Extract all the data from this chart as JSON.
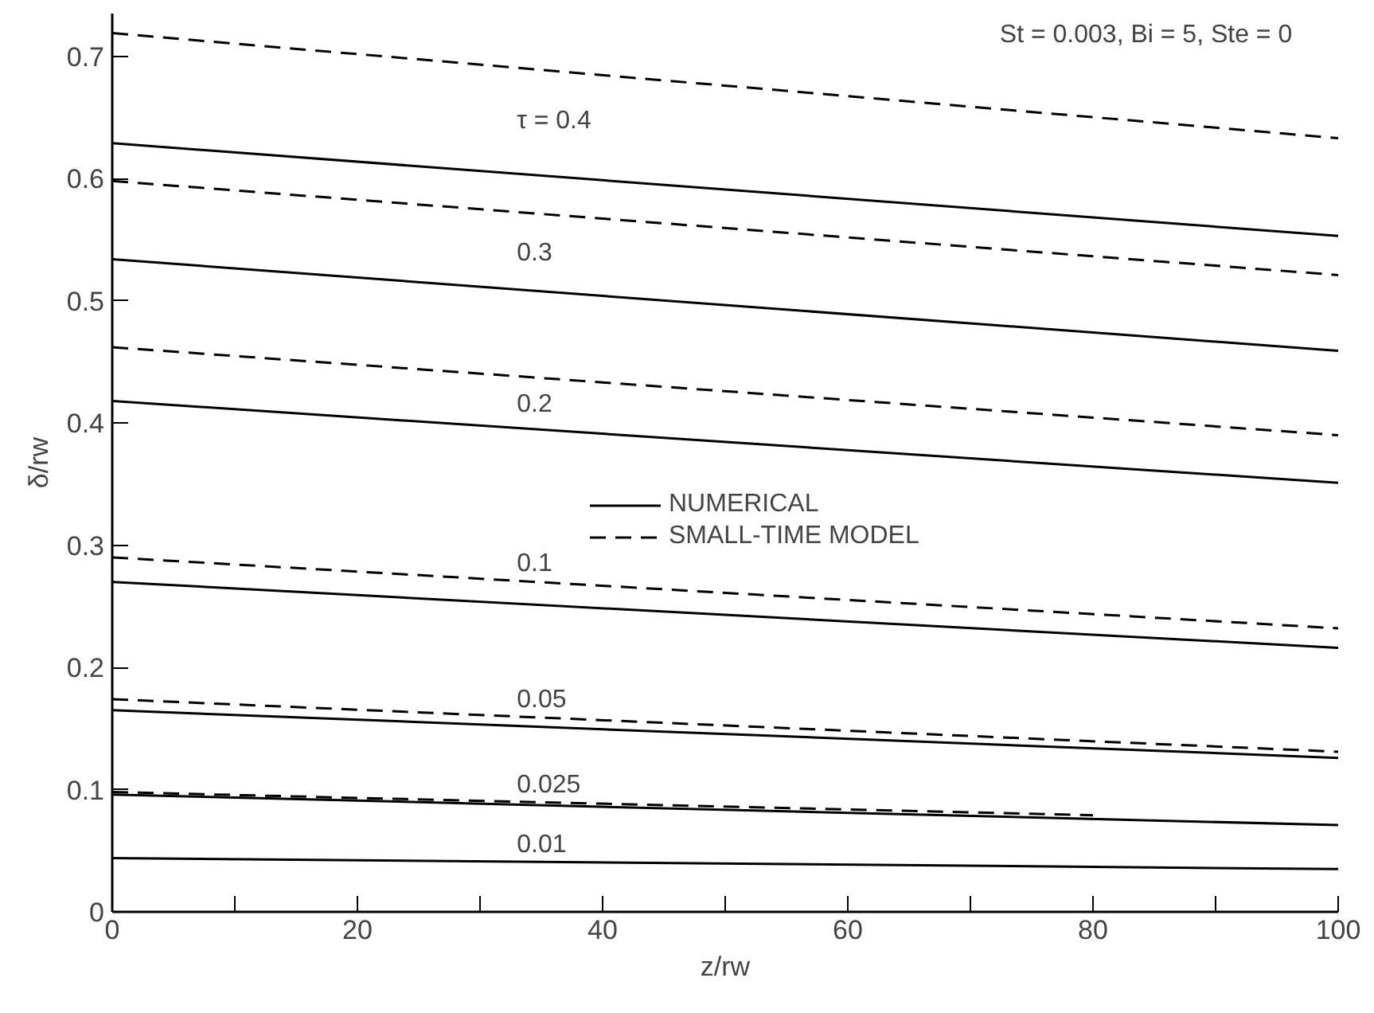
{
  "chart_data": {
    "type": "line",
    "xlabel": "z/rw",
    "ylabel": "δ/rw",
    "xlim": [
      0,
      100
    ],
    "ylim": [
      0,
      0.735
    ],
    "xticks": [
      0,
      {
        "value": 10,
        "label": null
      },
      20,
      {
        "value": 30,
        "label": null
      },
      40,
      {
        "value": 50,
        "label": null
      },
      60,
      {
        "value": 70,
        "label": null
      },
      80,
      {
        "value": 90,
        "label": null
      },
      100
    ],
    "yticks": [
      0,
      0.1,
      0.2,
      0.3,
      0.4,
      0.5,
      0.6,
      0.7
    ],
    "grid": false,
    "legend": "center",
    "marker": "none",
    "series": [
      {
        "name": "NUMERICAL",
        "color": "#000000",
        "line_style": "solid",
        "x": [
          0,
          100
        ],
        "values": [
          0.629,
          0.553
        ]
      },
      {
        "name": "SMALL-TIME MODEL",
        "color": "#000000",
        "line_style": "dashed",
        "x": [
          0,
          100
        ],
        "values": [
          0.719,
          0.633
        ]
      },
      {
        "color": "#000000",
        "line_style": "dashed",
        "x": [
          0,
          100
        ],
        "values": [
          0.598,
          0.521
        ]
      },
      {
        "color": "#000000",
        "line_style": "solid",
        "x": [
          0,
          100
        ],
        "values": [
          0.534,
          0.459
        ]
      },
      {
        "color": "#000000",
        "line_style": "dashed",
        "x": [
          0,
          100
        ],
        "values": [
          0.462,
          0.39
        ]
      },
      {
        "color": "#000000",
        "line_style": "solid",
        "x": [
          0,
          100
        ],
        "values": [
          0.418,
          0.351
        ]
      },
      {
        "color": "#000000",
        "line_style": "dashed",
        "x": [
          0,
          100
        ],
        "values": [
          0.29,
          0.232
        ]
      },
      {
        "color": "#000000",
        "line_style": "solid",
        "x": [
          0,
          100
        ],
        "values": [
          0.27,
          0.216
        ]
      },
      {
        "color": "#000000",
        "line_style": "dashed",
        "x": [
          0,
          100
        ],
        "values": [
          0.174,
          0.131
        ]
      },
      {
        "color": "#000000",
        "line_style": "solid",
        "x": [
          0,
          100
        ],
        "values": [
          0.165,
          0.126
        ]
      },
      {
        "color": "#000000",
        "line_style": "dashed",
        "x": [
          0,
          80
        ],
        "values": [
          0.098,
          0.079
        ]
      },
      {
        "color": "#000000",
        "line_style": "solid",
        "x": [
          0,
          100
        ],
        "values": [
          0.096,
          0.071
        ]
      },
      {
        "color": "#000000",
        "line_style": "solid",
        "x": [
          0,
          100
        ],
        "values": [
          0.044,
          0.035
        ]
      }
    ],
    "annotations": [
      "St = 0.003,  Bi = 5,  Ste = 0",
      "τ = 0.4",
      "0.3",
      "0.2",
      "0.1",
      "0.05",
      "0.025",
      "0.01"
    ]
  }
}
